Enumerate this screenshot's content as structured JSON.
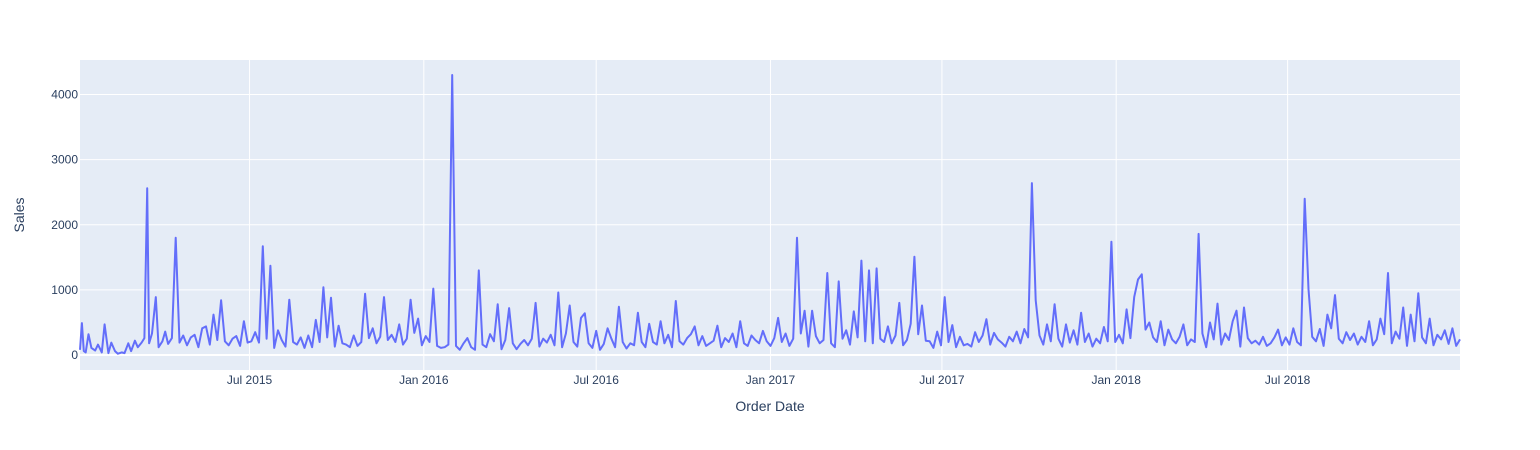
{
  "colors": {
    "plot_bg": "#E5ECF6",
    "grid": "#ffffff",
    "line": "#636EFA",
    "text": "#2a3f5f"
  },
  "chart_data": {
    "type": "line",
    "xlabel": "Order Date",
    "ylabel": "Sales",
    "grid": true,
    "xlim": [
      "2015-01-03",
      "2018-12-30"
    ],
    "ylim": [
      -230,
      4530
    ],
    "x_ticks": [
      {
        "date": "2015-07-01",
        "label": "Jul 2015"
      },
      {
        "date": "2016-01-01",
        "label": "Jan 2016"
      },
      {
        "date": "2016-07-01",
        "label": "Jul 2016"
      },
      {
        "date": "2017-01-01",
        "label": "Jan 2017"
      },
      {
        "date": "2017-07-01",
        "label": "Jul 2017"
      },
      {
        "date": "2018-01-01",
        "label": "Jan 2018"
      },
      {
        "date": "2018-07-01",
        "label": "Jul 2018"
      }
    ],
    "y_ticks": [
      {
        "value": 0,
        "label": "0"
      },
      {
        "value": 1000,
        "label": "1000"
      },
      {
        "value": 2000,
        "label": "2000"
      },
      {
        "value": 3000,
        "label": "3000"
      },
      {
        "value": 4000,
        "label": "4000"
      }
    ],
    "series": [
      {
        "x": [
          "2015-01-03",
          "2015-01-05",
          "2015-01-07",
          "2015-01-09",
          "2015-01-12",
          "2015-01-15",
          "2015-01-19",
          "2015-01-22",
          "2015-01-26",
          "2015-01-29",
          "2015-02-02",
          "2015-02-05",
          "2015-02-09",
          "2015-02-12",
          "2015-02-16",
          "2015-02-19",
          "2015-02-23",
          "2015-02-26",
          "2015-03-02",
          "2015-03-05",
          "2015-03-09",
          "2015-03-12",
          "2015-03-15",
          "2015-03-17",
          "2015-03-20",
          "2015-03-24",
          "2015-03-27",
          "2015-03-31",
          "2015-04-03",
          "2015-04-06",
          "2015-04-10",
          "2015-04-14",
          "2015-04-18",
          "2015-04-22",
          "2015-04-26",
          "2015-04-30",
          "2015-05-04",
          "2015-05-08",
          "2015-05-12",
          "2015-05-16",
          "2015-05-20",
          "2015-05-24",
          "2015-05-28",
          "2015-06-01",
          "2015-06-05",
          "2015-06-09",
          "2015-06-13",
          "2015-06-17",
          "2015-06-21",
          "2015-06-25",
          "2015-06-29",
          "2015-07-03",
          "2015-07-07",
          "2015-07-11",
          "2015-07-15",
          "2015-07-19",
          "2015-07-23",
          "2015-07-27",
          "2015-07-31",
          "2015-08-04",
          "2015-08-08",
          "2015-08-12",
          "2015-08-16",
          "2015-08-20",
          "2015-08-24",
          "2015-08-28",
          "2015-09-01",
          "2015-09-05",
          "2015-09-09",
          "2015-09-13",
          "2015-09-17",
          "2015-09-21",
          "2015-09-25",
          "2015-09-29",
          "2015-10-03",
          "2015-10-07",
          "2015-10-11",
          "2015-10-15",
          "2015-10-19",
          "2015-10-23",
          "2015-10-27",
          "2015-10-31",
          "2015-11-04",
          "2015-11-08",
          "2015-11-12",
          "2015-11-16",
          "2015-11-20",
          "2015-11-24",
          "2015-11-28",
          "2015-12-02",
          "2015-12-06",
          "2015-12-10",
          "2015-12-14",
          "2015-12-18",
          "2015-12-22",
          "2015-12-26",
          "2015-12-30",
          "2016-01-03",
          "2016-01-07",
          "2016-01-11",
          "2016-01-15",
          "2016-01-19",
          "2016-01-23",
          "2016-01-27",
          "2016-01-31",
          "2016-02-04",
          "2016-02-08",
          "2016-02-12",
          "2016-02-16",
          "2016-02-20",
          "2016-02-24",
          "2016-02-28",
          "2016-03-03",
          "2016-03-07",
          "2016-03-11",
          "2016-03-15",
          "2016-03-19",
          "2016-03-23",
          "2016-03-27",
          "2016-03-31",
          "2016-04-04",
          "2016-04-08",
          "2016-04-12",
          "2016-04-16",
          "2016-04-20",
          "2016-04-24",
          "2016-04-28",
          "2016-05-02",
          "2016-05-06",
          "2016-05-10",
          "2016-05-14",
          "2016-05-18",
          "2016-05-22",
          "2016-05-26",
          "2016-05-30",
          "2016-06-03",
          "2016-06-07",
          "2016-06-11",
          "2016-06-15",
          "2016-06-19",
          "2016-06-23",
          "2016-06-27",
          "2016-07-01",
          "2016-07-05",
          "2016-07-09",
          "2016-07-13",
          "2016-07-17",
          "2016-07-21",
          "2016-07-25",
          "2016-07-29",
          "2016-08-02",
          "2016-08-06",
          "2016-08-10",
          "2016-08-14",
          "2016-08-18",
          "2016-08-22",
          "2016-08-26",
          "2016-08-30",
          "2016-09-03",
          "2016-09-07",
          "2016-09-11",
          "2016-09-15",
          "2016-09-19",
          "2016-09-23",
          "2016-09-27",
          "2016-10-01",
          "2016-10-05",
          "2016-10-09",
          "2016-10-13",
          "2016-10-17",
          "2016-10-21",
          "2016-10-25",
          "2016-10-29",
          "2016-11-02",
          "2016-11-06",
          "2016-11-10",
          "2016-11-14",
          "2016-11-18",
          "2016-11-22",
          "2016-11-26",
          "2016-11-30",
          "2016-12-04",
          "2016-12-08",
          "2016-12-12",
          "2016-12-16",
          "2016-12-20",
          "2016-12-24",
          "2016-12-28",
          "2017-01-01",
          "2017-01-05",
          "2017-01-09",
          "2017-01-13",
          "2017-01-17",
          "2017-01-21",
          "2017-01-25",
          "2017-01-29",
          "2017-02-02",
          "2017-02-06",
          "2017-02-10",
          "2017-02-14",
          "2017-02-18",
          "2017-02-22",
          "2017-02-26",
          "2017-03-02",
          "2017-03-06",
          "2017-03-10",
          "2017-03-14",
          "2017-03-18",
          "2017-03-22",
          "2017-03-26",
          "2017-03-30",
          "2017-04-03",
          "2017-04-07",
          "2017-04-11",
          "2017-04-15",
          "2017-04-19",
          "2017-04-23",
          "2017-04-27",
          "2017-05-01",
          "2017-05-05",
          "2017-05-09",
          "2017-05-13",
          "2017-05-17",
          "2017-05-21",
          "2017-05-25",
          "2017-05-29",
          "2017-06-02",
          "2017-06-06",
          "2017-06-10",
          "2017-06-14",
          "2017-06-18",
          "2017-06-22",
          "2017-06-26",
          "2017-06-30",
          "2017-07-04",
          "2017-07-08",
          "2017-07-12",
          "2017-07-16",
          "2017-07-20",
          "2017-07-24",
          "2017-07-28",
          "2017-08-01",
          "2017-08-05",
          "2017-08-09",
          "2017-08-13",
          "2017-08-17",
          "2017-08-21",
          "2017-08-25",
          "2017-08-29",
          "2017-09-02",
          "2017-09-06",
          "2017-09-10",
          "2017-09-14",
          "2017-09-18",
          "2017-09-22",
          "2017-09-26",
          "2017-09-30",
          "2017-10-04",
          "2017-10-08",
          "2017-10-12",
          "2017-10-16",
          "2017-10-20",
          "2017-10-24",
          "2017-10-28",
          "2017-11-01",
          "2017-11-05",
          "2017-11-09",
          "2017-11-13",
          "2017-11-17",
          "2017-11-21",
          "2017-11-25",
          "2017-11-29",
          "2017-12-03",
          "2017-12-07",
          "2017-12-11",
          "2017-12-15",
          "2017-12-19",
          "2017-12-23",
          "2017-12-27",
          "2017-12-31",
          "2018-01-04",
          "2018-01-08",
          "2018-01-12",
          "2018-01-16",
          "2018-01-20",
          "2018-01-24",
          "2018-01-28",
          "2018-02-01",
          "2018-02-05",
          "2018-02-09",
          "2018-02-13",
          "2018-02-17",
          "2018-02-21",
          "2018-02-25",
          "2018-03-01",
          "2018-03-05",
          "2018-03-09",
          "2018-03-13",
          "2018-03-17",
          "2018-03-21",
          "2018-03-25",
          "2018-03-29",
          "2018-04-02",
          "2018-04-06",
          "2018-04-10",
          "2018-04-14",
          "2018-04-18",
          "2018-04-22",
          "2018-04-26",
          "2018-04-30",
          "2018-05-04",
          "2018-05-08",
          "2018-05-12",
          "2018-05-16",
          "2018-05-20",
          "2018-05-24",
          "2018-05-28",
          "2018-06-01",
          "2018-06-05",
          "2018-06-09",
          "2018-06-13",
          "2018-06-17",
          "2018-06-21",
          "2018-06-25",
          "2018-06-29",
          "2018-07-03",
          "2018-07-07",
          "2018-07-11",
          "2018-07-15",
          "2018-07-19",
          "2018-07-23",
          "2018-07-27",
          "2018-07-31",
          "2018-08-04",
          "2018-08-08",
          "2018-08-12",
          "2018-08-16",
          "2018-08-20",
          "2018-08-24",
          "2018-08-28",
          "2018-09-01",
          "2018-09-05",
          "2018-09-09",
          "2018-09-13",
          "2018-09-17",
          "2018-09-21",
          "2018-09-25",
          "2018-09-29",
          "2018-10-03",
          "2018-10-07",
          "2018-10-11",
          "2018-10-15",
          "2018-10-19",
          "2018-10-23",
          "2018-10-27",
          "2018-10-31",
          "2018-11-04",
          "2018-11-08",
          "2018-11-12",
          "2018-11-16",
          "2018-11-20",
          "2018-11-24",
          "2018-11-28",
          "2018-12-02",
          "2018-12-06",
          "2018-12-10",
          "2018-12-14",
          "2018-12-18",
          "2018-12-22",
          "2018-12-26",
          "2018-12-30"
        ],
        "y": [
          80,
          490,
          60,
          40,
          320,
          110,
          70,
          160,
          40,
          470,
          30,
          190,
          60,
          20,
          40,
          30,
          180,
          60,
          220,
          120,
          190,
          260,
          2560,
          180,
          330,
          890,
          120,
          210,
          360,
          170,
          260,
          1800,
          190,
          300,
          150,
          270,
          310,
          120,
          410,
          440,
          160,
          620,
          230,
          840,
          210,
          150,
          250,
          290,
          140,
          520,
          190,
          210,
          350,
          190,
          1670,
          250,
          1370,
          110,
          380,
          230,
          130,
          850,
          200,
          160,
          270,
          110,
          300,
          120,
          540,
          200,
          1040,
          270,
          880,
          130,
          450,
          180,
          160,
          120,
          300,
          140,
          200,
          940,
          260,
          410,
          180,
          280,
          890,
          230,
          310,
          200,
          470,
          160,
          250,
          850,
          340,
          560,
          150,
          290,
          200,
          1020,
          140,
          110,
          120,
          160,
          4300,
          140,
          80,
          180,
          260,
          120,
          80,
          1300,
          160,
          120,
          320,
          210,
          780,
          90,
          230,
          720,
          180,
          90,
          170,
          230,
          150,
          250,
          800,
          130,
          250,
          190,
          310,
          150,
          960,
          120,
          330,
          760,
          200,
          130,
          570,
          640,
          180,
          110,
          370,
          80,
          170,
          410,
          250,
          120,
          740,
          200,
          100,
          180,
          150,
          650,
          200,
          120,
          480,
          200,
          160,
          520,
          180,
          310,
          120,
          830,
          210,
          160,
          260,
          320,
          440,
          150,
          290,
          140,
          180,
          220,
          450,
          120,
          260,
          200,
          330,
          120,
          520,
          180,
          140,
          300,
          230,
          180,
          370,
          210,
          140,
          260,
          570,
          200,
          330,
          140,
          250,
          1800,
          330,
          680,
          130,
          680,
          290,
          180,
          230,
          1260,
          180,
          120,
          1130,
          250,
          380,
          160,
          670,
          270,
          1450,
          210,
          1300,
          180,
          1330,
          250,
          200,
          440,
          180,
          300,
          800,
          150,
          230,
          480,
          1510,
          320,
          760,
          220,
          210,
          110,
          360,
          150,
          890,
          200,
          460,
          120,
          280,
          150,
          170,
          130,
          350,
          200,
          300,
          550,
          160,
          340,
          240,
          190,
          130,
          280,
          210,
          360,
          180,
          400,
          270,
          2640,
          840,
          300,
          160,
          470,
          210,
          780,
          250,
          130,
          470,
          190,
          380,
          160,
          650,
          200,
          330,
          130,
          250,
          180,
          430,
          210,
          1740,
          200,
          310,
          180,
          700,
          260,
          890,
          1160,
          1240,
          390,
          500,
          270,
          200,
          520,
          150,
          390,
          240,
          180,
          280,
          470,
          150,
          240,
          200,
          1860,
          330,
          120,
          500,
          240,
          790,
          160,
          330,
          230,
          520,
          680,
          130,
          730,
          260,
          180,
          220,
          160,
          280,
          140,
          180,
          270,
          390,
          150,
          270,
          160,
          410,
          200,
          150,
          2400,
          1010,
          280,
          210,
          400,
          140,
          620,
          410,
          920,
          250,
          180,
          350,
          230,
          330,
          160,
          280,
          200,
          520,
          150,
          240,
          560,
          320,
          1260,
          180,
          360,
          250,
          730,
          140,
          620,
          210,
          950,
          270,
          180,
          560,
          150,
          310,
          240,
          380,
          170,
          410,
          140,
          240
        ]
      }
    ]
  }
}
